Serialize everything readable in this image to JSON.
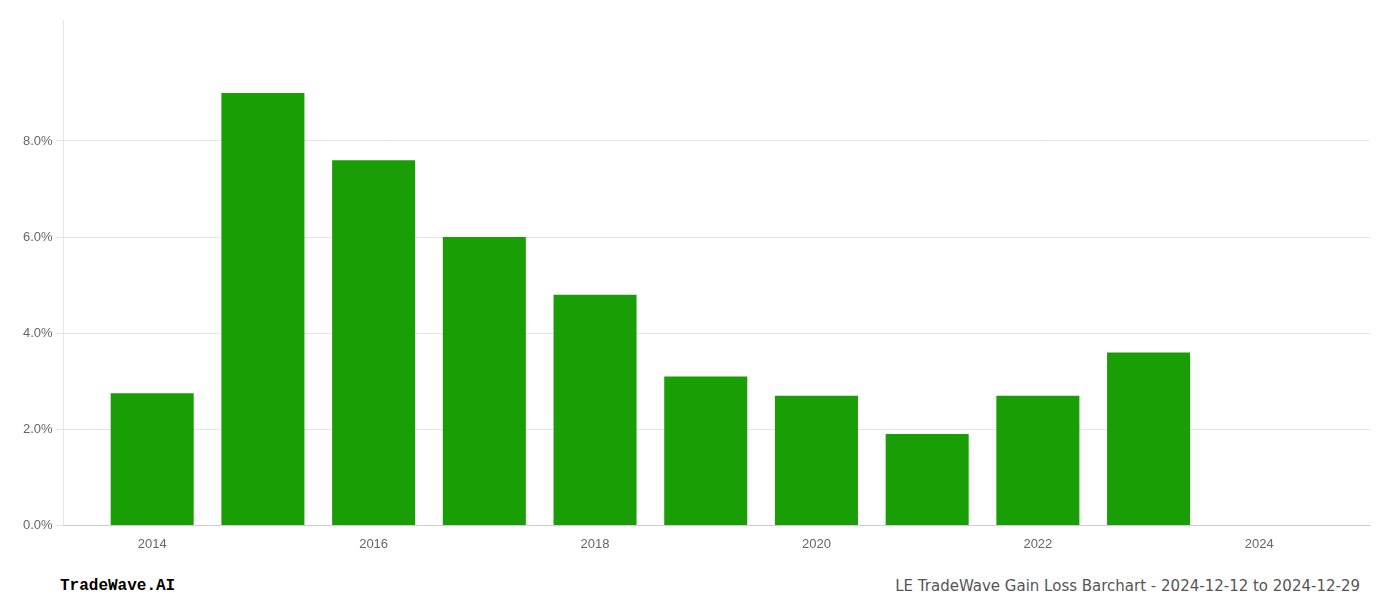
{
  "chart_data": {
    "type": "bar",
    "x": [
      2014,
      2015,
      2016,
      2017,
      2018,
      2019,
      2020,
      2021,
      2022,
      2023
    ],
    "values": [
      0.0275,
      0.09,
      0.076,
      0.06,
      0.048,
      0.031,
      0.027,
      0.019,
      0.027,
      0.036
    ],
    "color": "#1a9e06",
    "xlim": [
      2013.2,
      2025.0
    ],
    "xticks": [
      2014,
      2016,
      2018,
      2020,
      2022,
      2024
    ],
    "ylim": [
      0,
      0.105
    ],
    "yticks": [
      {
        "value": 0.0,
        "label": "0.0%"
      },
      {
        "value": 0.02,
        "label": "2.0%"
      },
      {
        "value": 0.04,
        "label": "4.0%"
      },
      {
        "value": 0.06,
        "label": "6.0%"
      },
      {
        "value": 0.08,
        "label": "8.0%"
      }
    ],
    "grid": "y",
    "annotations": [
      "TradeWave.AI",
      "LE TradeWave Gain Loss Barchart - 2024-12-12 to 2024-12-29"
    ]
  }
}
